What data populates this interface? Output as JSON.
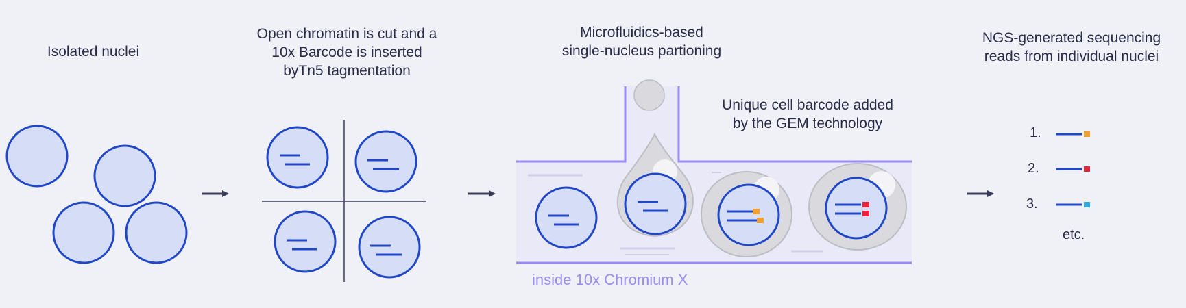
{
  "steps": {
    "step1": {
      "title": "Isolated nuclei"
    },
    "step2": {
      "title_lines": [
        "Open chromatin is cut and a",
        "10x Barcode is inserted",
        "byTn5 tagmentation"
      ]
    },
    "step3": {
      "title_lines": [
        "Microfluidics-based",
        "single-nucleus partioning"
      ],
      "gem_note_lines": [
        "Unique cell barcode added",
        "by the GEM technology"
      ],
      "device_label": "inside 10x Chromium X"
    },
    "step4": {
      "title_lines": [
        "NGS-generated sequencing",
        "reads from individual nuclei"
      ],
      "reads": [
        {
          "number": "1.",
          "tag_color": "#f0a030"
        },
        {
          "number": "2.",
          "tag_color": "#e8233a"
        },
        {
          "number": "3.",
          "tag_color": "#2ea8e0"
        }
      ],
      "more": "etc."
    }
  },
  "colors": {
    "nucleus_fill": "#d6def7",
    "nucleus_stroke": "#2147c9",
    "channel": "#9a8cf0",
    "channel_fill": "#e9e9f7",
    "gem_fill": "#d9d9de",
    "arrow": "#3a3d5a",
    "barcode_orange": "#f0a030",
    "barcode_red": "#e8233a"
  }
}
